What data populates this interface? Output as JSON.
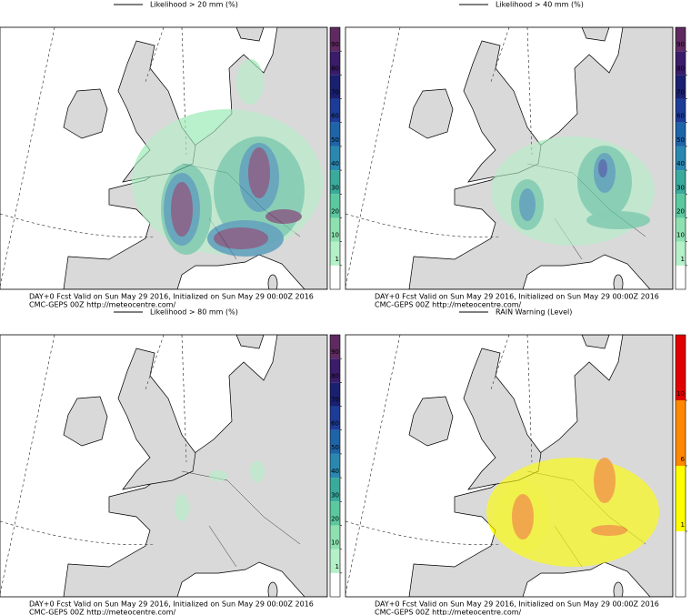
{
  "panels": [
    {
      "title": "Likelihood > 20 mm (%)",
      "colorbar_ticks": [
        1,
        10,
        20,
        30,
        40,
        50,
        60,
        70,
        80,
        90
      ],
      "colorbar_colors": [
        "#ffffff",
        "#b4f0c8",
        "#8ee0b0",
        "#5cc8a0",
        "#3aaa9c",
        "#2a88b0",
        "#1e64a8",
        "#1c3c98",
        "#1a2070",
        "#3a1c6a",
        "#5e2a60"
      ],
      "footer": [
        "DAY+0 Fcst Valid on Sun May 29 2016, Initialized on Sun May 29 00:00Z 2016",
        "CMC-GEPS 00Z http://meteocentre.com/"
      ]
    },
    {
      "title": "Likelihood > 40 mm (%)",
      "colorbar_ticks": [
        1,
        10,
        20,
        30,
        40,
        50,
        60,
        70,
        80,
        90
      ],
      "colorbar_colors": [
        "#ffffff",
        "#b4f0c8",
        "#8ee0b0",
        "#5cc8a0",
        "#3aaa9c",
        "#2a88b0",
        "#1e64a8",
        "#1c3c98",
        "#1a2070",
        "#3a1c6a",
        "#5e2a60"
      ],
      "footer": [
        "DAY+0 Fcst Valid on Sun May 29 2016, Initialized on Sun May 29 00:00Z 2016",
        "CMC-GEPS 00Z http://meteocentre.com/"
      ]
    },
    {
      "title": "Likelihood > 80 mm (%)",
      "colorbar_ticks": [
        1,
        10,
        20,
        30,
        40,
        50,
        60,
        70,
        80,
        90
      ],
      "colorbar_colors": [
        "#ffffff",
        "#b4f0c8",
        "#8ee0b0",
        "#5cc8a0",
        "#3aaa9c",
        "#2a88b0",
        "#1e64a8",
        "#1c3c98",
        "#1a2070",
        "#3a1c6a",
        "#5e2a60"
      ],
      "footer": [
        "DAY+0 Fcst Valid on Sun May 29 2016, Initialized on Sun May 29 00:00Z 2016",
        "CMC-GEPS 00Z http://meteocentre.com/"
      ]
    },
    {
      "title": "RAIN Warning (Level)",
      "colorbar_ticks": [
        1,
        6,
        10
      ],
      "colorbar_colors": [
        "#ffffff",
        "#ffff00",
        "#ff8800",
        "#e00000"
      ],
      "footer": [
        "DAY+0 Fcst Valid on Sun May 29 2016, Initialized on Sun May 29 00:00Z 2016",
        "CMC-GEPS 00Z http://meteocentre.com/"
      ]
    }
  ]
}
